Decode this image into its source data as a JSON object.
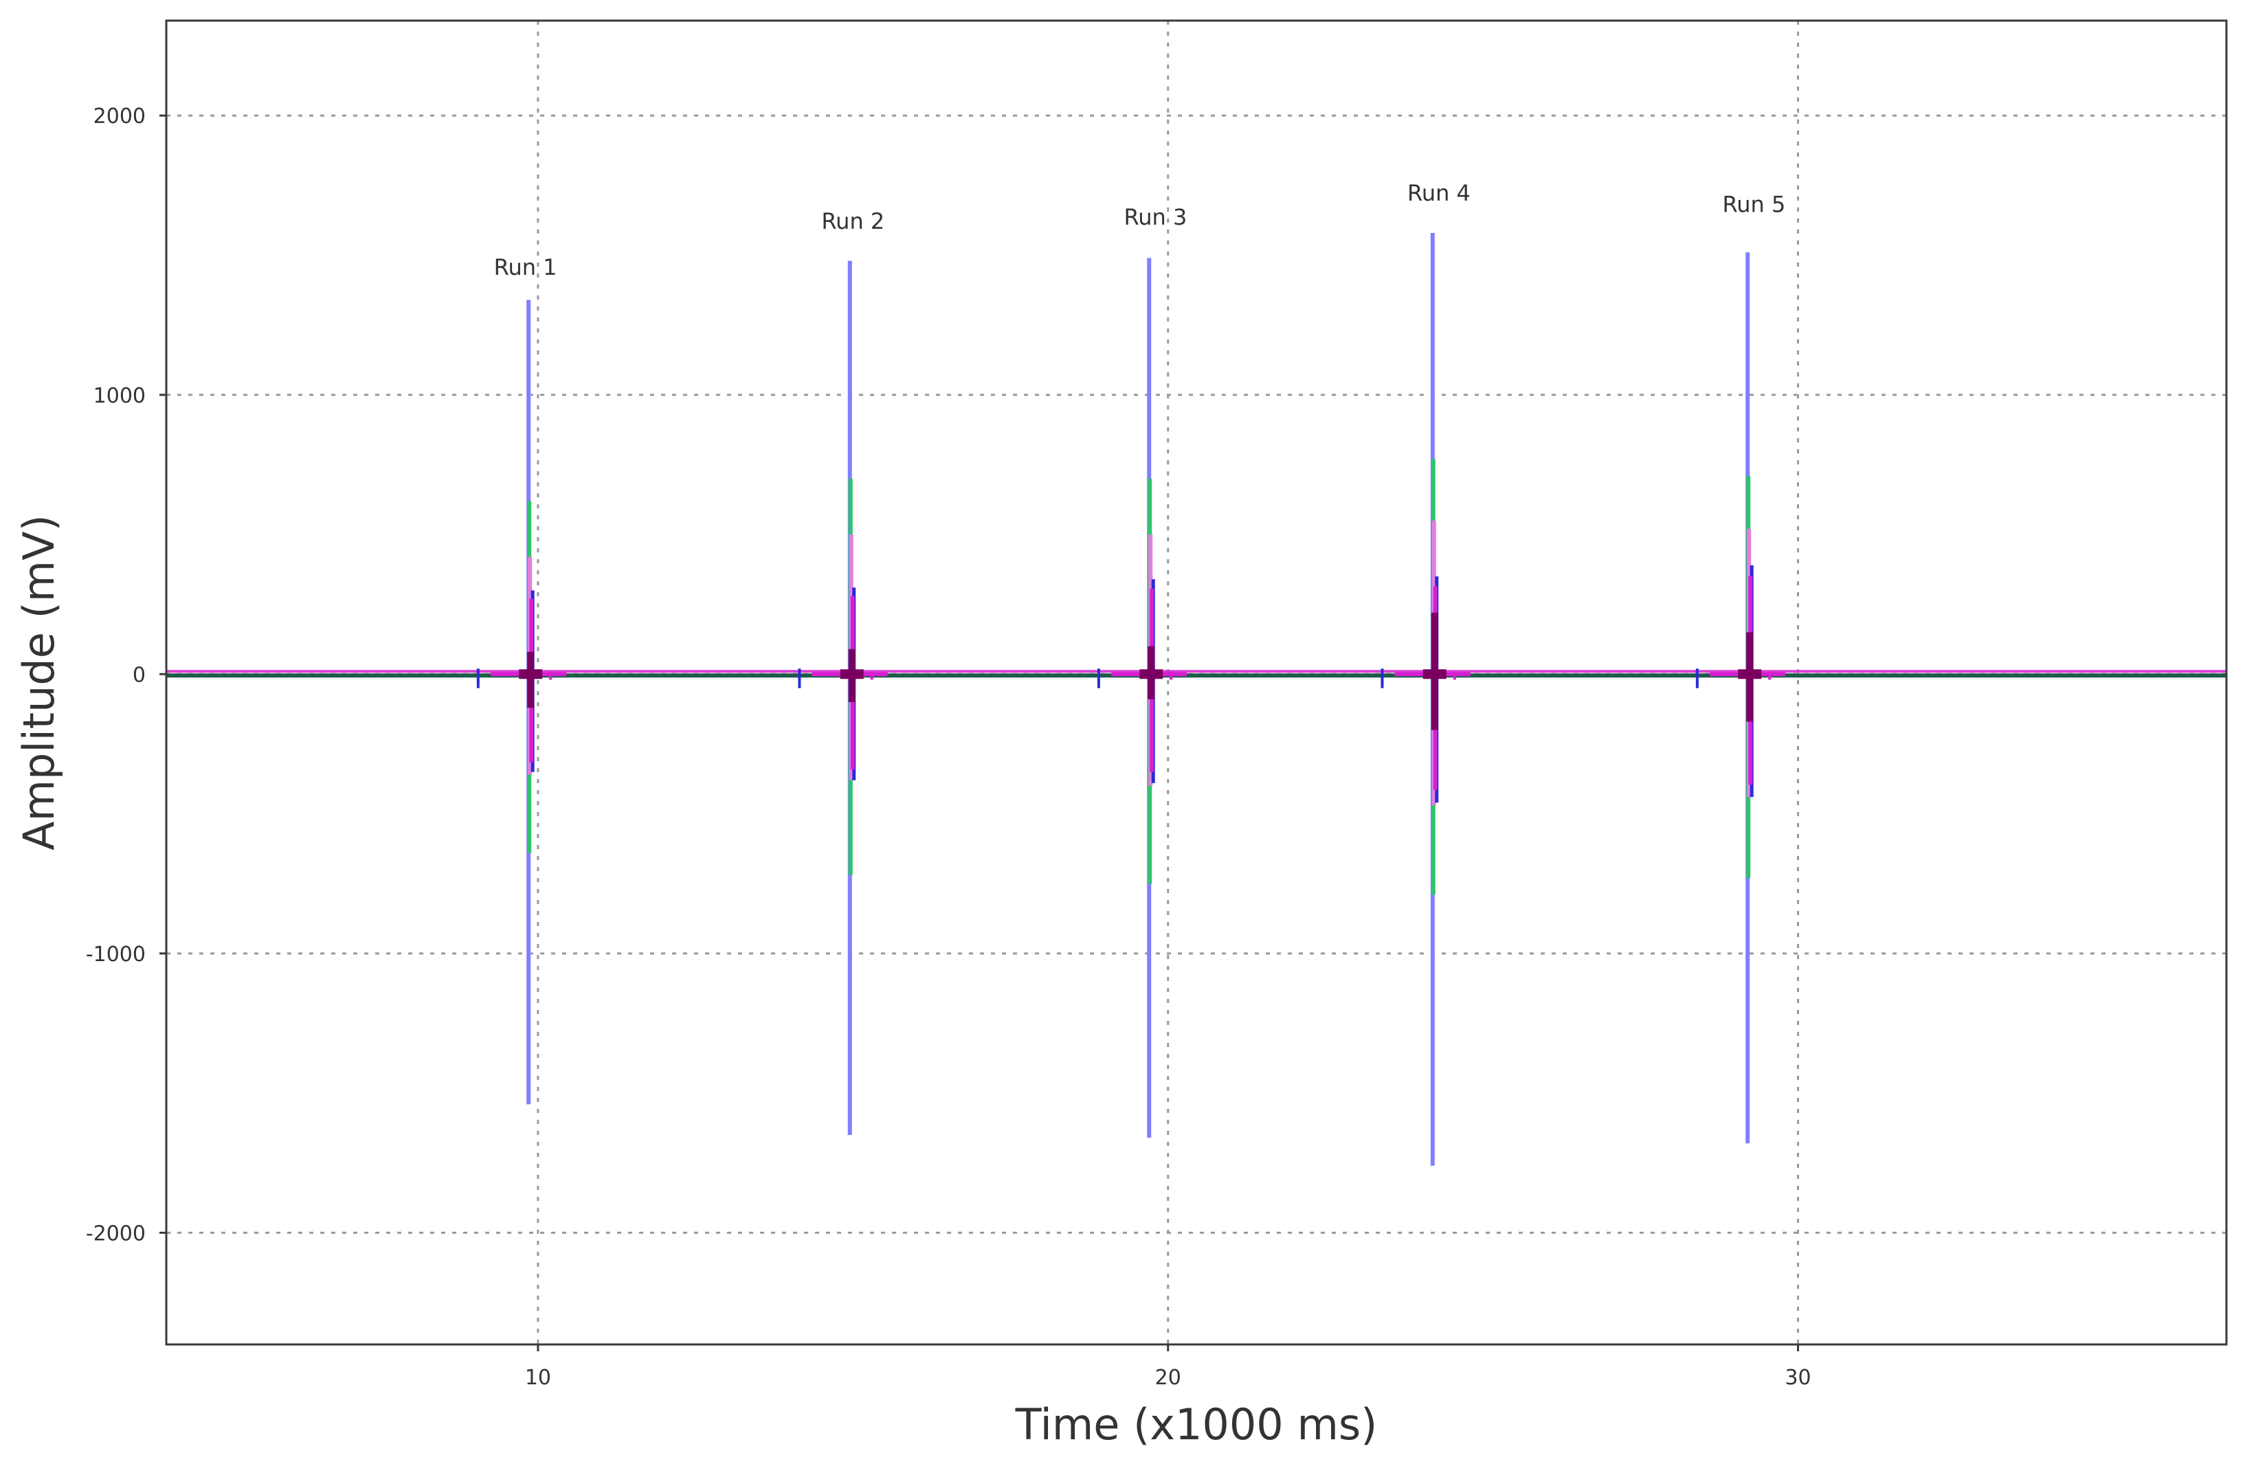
{
  "chart_data": {
    "type": "line",
    "title": "",
    "xlabel": "Time (x1000 ms)",
    "ylabel": "Amplitude (mV)",
    "xlim": [
      4.1,
      36.8
    ],
    "ylim": [
      -2400,
      2340
    ],
    "x_ticks": [
      10,
      20,
      30
    ],
    "y_ticks": [
      2000,
      1000,
      0,
      -1000,
      -2000
    ],
    "grid": true,
    "legend": "none",
    "colors": {
      "blue": "#7f7fff",
      "deep_blue": "#2b2bd6",
      "green": "#2ec46a",
      "pink": "#e77ce0",
      "magenta": "#d61fd0",
      "dark": "#7a0060",
      "baseline": "#1c5a4a"
    },
    "annotations": [
      {
        "text": "Run 1",
        "x": 9.8,
        "y": 1430
      },
      {
        "text": "Run 2",
        "x": 15.0,
        "y": 1595
      },
      {
        "text": "Run 3",
        "x": 19.8,
        "y": 1610
      },
      {
        "text": "Run 4",
        "x": 24.3,
        "y": 1695
      },
      {
        "text": "Run 5",
        "x": 29.3,
        "y": 1655
      }
    ],
    "runs": [
      {
        "name": "Run 1",
        "x": 9.85,
        "blue": [
          1340,
          -1540
        ],
        "green": [
          620,
          -640
        ],
        "pink": [
          420,
          -360
        ],
        "dark": [
          300,
          -350
        ],
        "dark_core": [
          80,
          -120
        ]
      },
      {
        "name": "Run 2",
        "x": 14.95,
        "blue": [
          1480,
          -1650
        ],
        "green": [
          700,
          -720
        ],
        "pink": [
          500,
          -380
        ],
        "dark": [
          310,
          -380
        ],
        "dark_core": [
          90,
          -100
        ]
      },
      {
        "name": "Run 3",
        "x": 19.7,
        "blue": [
          1490,
          -1660
        ],
        "green": [
          700,
          -750
        ],
        "pink": [
          500,
          -400
        ],
        "dark": [
          340,
          -390
        ],
        "dark_core": [
          100,
          -90
        ]
      },
      {
        "name": "Run 4",
        "x": 24.2,
        "blue": [
          1580,
          -1760
        ],
        "green": [
          770,
          -790
        ],
        "pink": [
          550,
          -470
        ],
        "dark": [
          350,
          -460
        ],
        "dark_core": [
          220,
          -200
        ]
      },
      {
        "name": "Run 5",
        "x": 29.2,
        "blue": [
          1510,
          -1680
        ],
        "green": [
          710,
          -730
        ],
        "pink": [
          520,
          -440
        ],
        "dark": [
          390,
          -440
        ],
        "dark_core": [
          150,
          -170
        ]
      }
    ]
  }
}
